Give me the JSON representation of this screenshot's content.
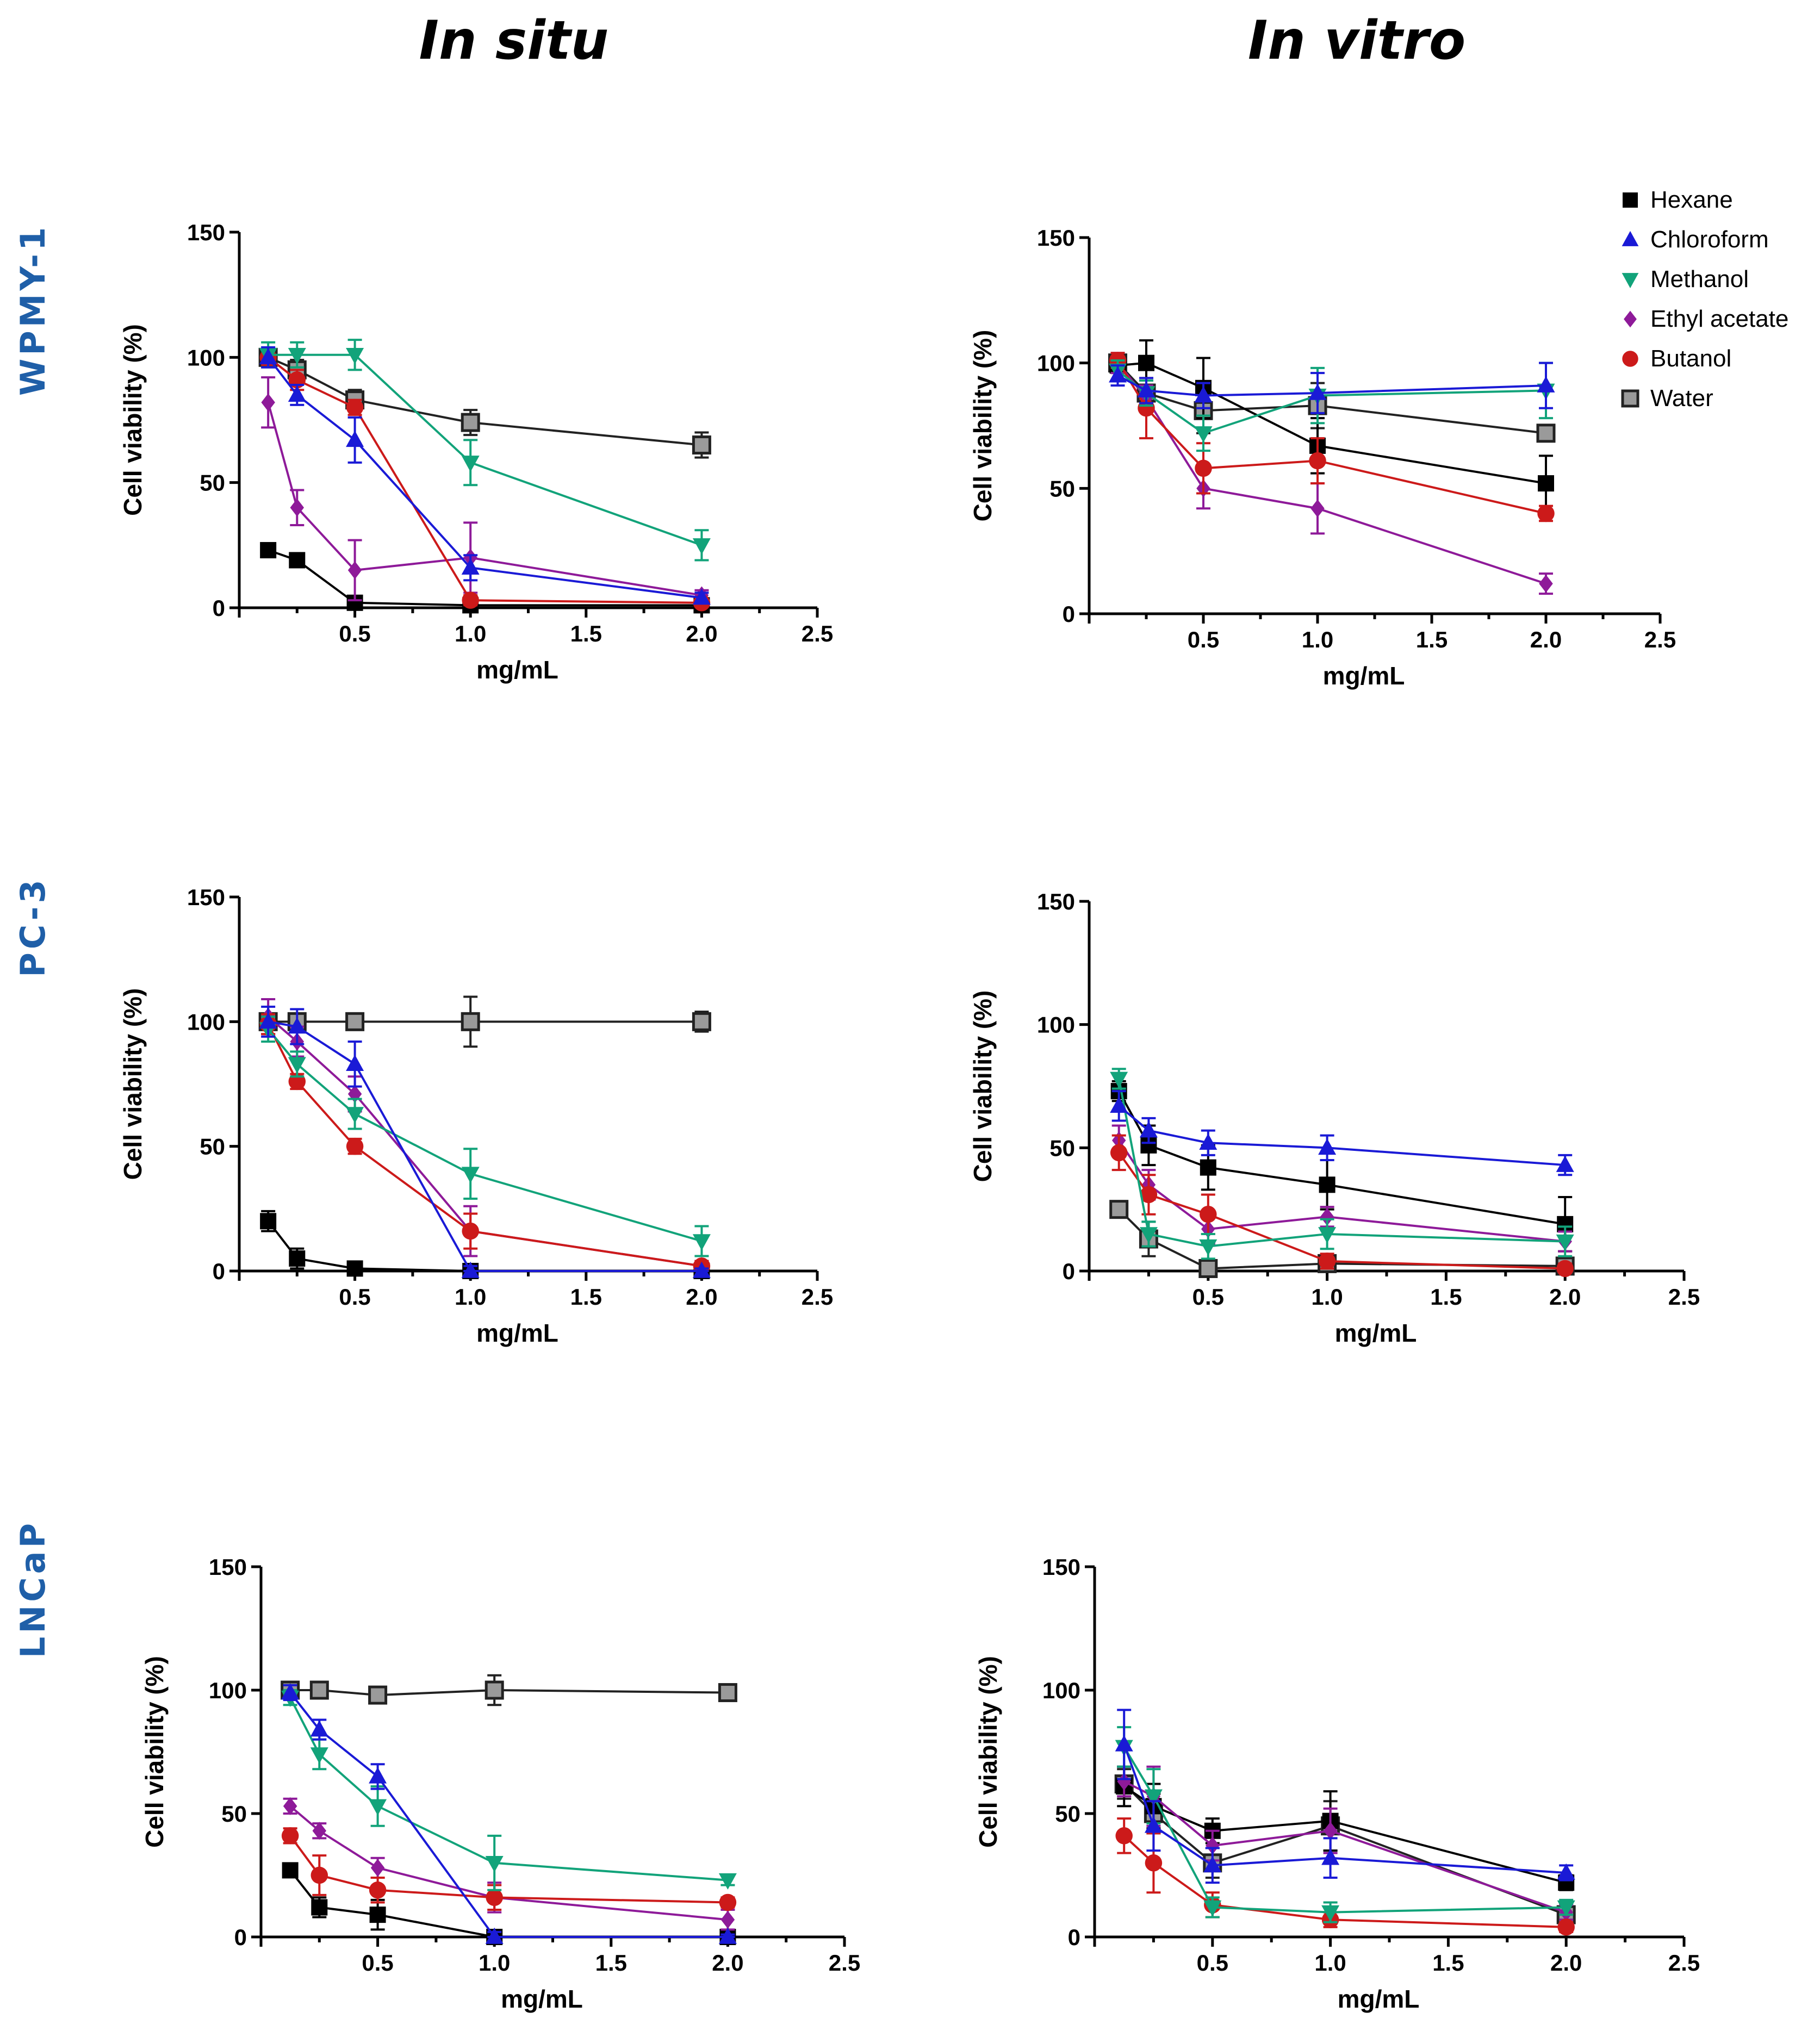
{
  "columns": [
    "In situ",
    "In vitro"
  ],
  "rows": [
    "WPMY-1",
    "PC-3",
    "LNCaP"
  ],
  "legend": [
    {
      "name": "Hexane",
      "marker": "square",
      "color": "#000000"
    },
    {
      "name": "Chloroform",
      "marker": "triangle-up",
      "color": "#1a1ad6"
    },
    {
      "name": "Methanol",
      "marker": "triangle-down",
      "color": "#12a37a"
    },
    {
      "name": "Ethyl acetate",
      "marker": "diamond",
      "color": "#8e1a99"
    },
    {
      "name": "Butanol",
      "marker": "circle",
      "color": "#cc1a1a"
    },
    {
      "name": "Water",
      "marker": "square-gray",
      "color": "#9a9a9a"
    }
  ],
  "chart_data": [
    {
      "type": "line",
      "panel": "WPMY-1 In situ",
      "xlabel": "mg/mL",
      "ylabel": "Cell viability (%)",
      "xlim": [
        0,
        2.5
      ],
      "ylim": [
        0,
        150
      ],
      "xticks": [
        "0.5",
        "1.0",
        "1.5",
        "2.0",
        "2.5"
      ],
      "yticks": [
        "0",
        "50",
        "100",
        "150"
      ],
      "x": [
        0.125,
        0.25,
        0.5,
        1.0,
        2.0
      ],
      "series": [
        {
          "name": "Hexane",
          "values": [
            23,
            19,
            2,
            1,
            1
          ],
          "err": [
            2,
            2,
            2,
            2,
            1
          ]
        },
        {
          "name": "Chloroform",
          "values": [
            100,
            85,
            67,
            16,
            4
          ],
          "err": [
            4,
            4,
            9,
            5,
            2
          ]
        },
        {
          "name": "Methanol",
          "values": [
            101,
            101,
            101,
            58,
            25
          ],
          "err": [
            5,
            5,
            6,
            9,
            6
          ]
        },
        {
          "name": "Ethyl acetate",
          "values": [
            82,
            40,
            15,
            20,
            5
          ],
          "err": [
            10,
            7,
            12,
            14,
            2
          ]
        },
        {
          "name": "Butanol",
          "values": [
            100,
            91,
            80,
            3,
            2
          ],
          "err": [
            3,
            4,
            3,
            2,
            1
          ]
        },
        {
          "name": "Water",
          "values": [
            100,
            95,
            83,
            74,
            65
          ],
          "err": [
            3,
            4,
            4,
            5,
            5
          ]
        }
      ]
    },
    {
      "type": "line",
      "panel": "WPMY-1 In vitro",
      "xlabel": "mg/mL",
      "ylabel": "Cell viability (%)",
      "xlim": [
        0,
        2.5
      ],
      "ylim": [
        0,
        150
      ],
      "xticks": [
        "0.5",
        "1.0",
        "1.5",
        "2.0",
        "2.5"
      ],
      "yticks": [
        "0",
        "50",
        "100",
        "150"
      ],
      "x": [
        0.125,
        0.25,
        0.5,
        1.0,
        2.0
      ],
      "series": [
        {
          "name": "Hexane",
          "values": [
            99,
            100,
            90,
            67,
            52
          ],
          "err": [
            3,
            9,
            12,
            11,
            11
          ]
        },
        {
          "name": "Chloroform",
          "values": [
            95,
            89,
            87,
            88,
            91
          ],
          "err": [
            4,
            5,
            5,
            8,
            9
          ]
        },
        {
          "name": "Methanol",
          "values": [
            97,
            88,
            72,
            87,
            89
          ],
          "err": [
            4,
            5,
            7,
            11,
            11
          ]
        },
        {
          "name": "Ethyl acetate",
          "values": [
            100,
            86,
            50,
            42,
            12
          ],
          "err": [
            4,
            5,
            8,
            10,
            4
          ]
        },
        {
          "name": "Butanol",
          "values": [
            101,
            82,
            58,
            61,
            40
          ],
          "err": [
            3,
            12,
            10,
            9,
            3
          ]
        },
        {
          "name": "Water",
          "values": [
            100,
            88,
            81,
            83,
            72
          ],
          "err": [
            3,
            5,
            9,
            9,
            2
          ]
        }
      ]
    },
    {
      "type": "line",
      "panel": "PC-3 In situ",
      "xlabel": "mg/mL",
      "ylabel": "Cell viability (%)",
      "xlim": [
        0,
        2.5
      ],
      "ylim": [
        0,
        150
      ],
      "xticks": [
        "0.5",
        "1.0",
        "1.5",
        "2.0",
        "2.5"
      ],
      "yticks": [
        "0",
        "50",
        "100",
        "150"
      ],
      "x": [
        0.125,
        0.25,
        0.5,
        1.0,
        2.0
      ],
      "series": [
        {
          "name": "Hexane",
          "values": [
            20,
            5,
            1,
            0,
            0
          ],
          "err": [
            4,
            4,
            2,
            2,
            1
          ]
        },
        {
          "name": "Chloroform",
          "values": [
            100,
            98,
            83,
            0,
            0
          ],
          "err": [
            6,
            7,
            9,
            2,
            1
          ]
        },
        {
          "name": "Methanol",
          "values": [
            97,
            83,
            63,
            39,
            12
          ],
          "err": [
            5,
            5,
            6,
            10,
            6
          ]
        },
        {
          "name": "Ethyl acetate",
          "values": [
            102,
            92,
            71,
            16,
            2
          ],
          "err": [
            7,
            6,
            7,
            10,
            2
          ]
        },
        {
          "name": "Butanol",
          "values": [
            99,
            76,
            50,
            16,
            2
          ],
          "err": [
            4,
            3,
            3,
            7,
            2
          ]
        },
        {
          "name": "Water",
          "values": [
            100,
            100,
            100,
            100,
            100
          ],
          "err": [
            3,
            3,
            3,
            10,
            4
          ]
        }
      ]
    },
    {
      "type": "line",
      "panel": "PC-3 In vitro",
      "xlabel": "mg/mL",
      "ylabel": "Cell viability (%)",
      "xlim": [
        0,
        2.5
      ],
      "ylim": [
        0,
        150
      ],
      "xticks": [
        "0.5",
        "1.0",
        "1.5",
        "2.0",
        "2.5"
      ],
      "yticks": [
        "0",
        "50",
        "100",
        "150"
      ],
      "x": [
        0.125,
        0.25,
        0.5,
        1.0,
        2.0
      ],
      "series": [
        {
          "name": "Hexane",
          "values": [
            73,
            51,
            42,
            35,
            19
          ],
          "err": [
            4,
            8,
            9,
            10,
            11
          ]
        },
        {
          "name": "Chloroform",
          "values": [
            67,
            57,
            52,
            50,
            43
          ],
          "err": [
            6,
            5,
            5,
            5,
            4
          ]
        },
        {
          "name": "Methanol",
          "values": [
            78,
            15,
            10,
            15,
            12
          ],
          "err": [
            4,
            5,
            5,
            6,
            6
          ]
        },
        {
          "name": "Ethyl acetate",
          "values": [
            53,
            35,
            17,
            22,
            12
          ],
          "err": [
            6,
            6,
            6,
            4,
            4
          ]
        },
        {
          "name": "Butanol",
          "values": [
            48,
            31,
            23,
            4,
            1
          ],
          "err": [
            7,
            8,
            8,
            3,
            2
          ]
        },
        {
          "name": "Water",
          "values": [
            25,
            13,
            1,
            3,
            2
          ],
          "err": [
            2,
            7,
            2,
            2,
            2
          ]
        }
      ]
    },
    {
      "type": "line",
      "panel": "LNCaP In situ",
      "xlabel": "mg/mL",
      "ylabel": "Cell viability (%)",
      "xlim": [
        0,
        2.5
      ],
      "ylim": [
        0,
        150
      ],
      "xticks": [
        "0.5",
        "1.0",
        "1.5",
        "2.0",
        "2.5"
      ],
      "yticks": [
        "0",
        "50",
        "100",
        "150"
      ],
      "x": [
        0.125,
        0.25,
        0.5,
        1.0,
        2.0
      ],
      "series": [
        {
          "name": "Hexane",
          "values": [
            27,
            12,
            9,
            0,
            0
          ],
          "err": [
            2,
            4,
            6,
            2,
            1
          ]
        },
        {
          "name": "Chloroform",
          "values": [
            99,
            84,
            65,
            0,
            0
          ],
          "err": [
            3,
            4,
            5,
            2,
            1
          ]
        },
        {
          "name": "Methanol",
          "values": [
            97,
            74,
            53,
            30,
            23
          ],
          "err": [
            3,
            6,
            8,
            11,
            2
          ]
        },
        {
          "name": "Ethyl acetate",
          "values": [
            53,
            43,
            28,
            16,
            7
          ],
          "err": [
            3,
            3,
            4,
            6,
            4
          ]
        },
        {
          "name": "Butanol",
          "values": [
            41,
            25,
            19,
            16,
            14
          ],
          "err": [
            3,
            8,
            5,
            5,
            2
          ]
        },
        {
          "name": "Water",
          "values": [
            100,
            100,
            98,
            100,
            99
          ],
          "err": [
            3,
            2,
            2,
            6,
            2
          ]
        }
      ]
    },
    {
      "type": "line",
      "panel": "LNCaP In vitro",
      "xlabel": "mg/mL",
      "ylabel": "Cell viability (%)",
      "xlim": [
        0,
        2.5
      ],
      "ylim": [
        0,
        150
      ],
      "xticks": [
        "0.5",
        "1.0",
        "1.5",
        "2.0",
        "2.5"
      ],
      "yticks": [
        "0",
        "50",
        "100",
        "150"
      ],
      "x": [
        0.125,
        0.25,
        0.5,
        1.0,
        2.0
      ],
      "series": [
        {
          "name": "Hexane",
          "values": [
            61,
            53,
            43,
            47,
            22
          ],
          "err": [
            8,
            9,
            5,
            12,
            3
          ]
        },
        {
          "name": "Chloroform",
          "values": [
            78,
            45,
            29,
            32,
            26
          ],
          "err": [
            14,
            10,
            7,
            8,
            3
          ]
        },
        {
          "name": "Methanol",
          "values": [
            77,
            57,
            12,
            10,
            12
          ],
          "err": [
            8,
            11,
            4,
            4,
            3
          ]
        },
        {
          "name": "Ethyl acetate",
          "values": [
            63,
            57,
            37,
            43,
            10
          ],
          "err": [
            6,
            12,
            6,
            9,
            3
          ]
        },
        {
          "name": "Butanol",
          "values": [
            41,
            30,
            13,
            7,
            4
          ],
          "err": [
            7,
            12,
            5,
            3,
            2
          ]
        },
        {
          "name": "Water",
          "values": [
            62,
            50,
            30,
            45,
            9
          ],
          "err": [
            6,
            8,
            6,
            10,
            3
          ]
        }
      ]
    }
  ]
}
